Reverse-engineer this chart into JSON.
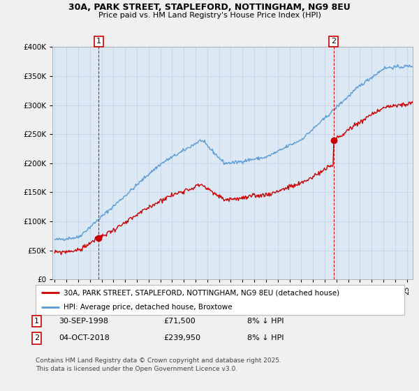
{
  "title1": "30A, PARK STREET, STAPLEFORD, NOTTINGHAM, NG9 8EU",
  "title2": "Price paid vs. HM Land Registry's House Price Index (HPI)",
  "legend_red": "30A, PARK STREET, STAPLEFORD, NOTTINGHAM, NG9 8EU (detached house)",
  "legend_blue": "HPI: Average price, detached house, Broxtowe",
  "transaction1_date": "30-SEP-1998",
  "transaction1_price": "£71,500",
  "transaction1_note": "8% ↓ HPI",
  "transaction2_date": "04-OCT-2018",
  "transaction2_price": "£239,950",
  "transaction2_note": "8% ↓ HPI",
  "footer": "Contains HM Land Registry data © Crown copyright and database right 2025.\nThis data is licensed under the Open Government Licence v3.0.",
  "vline1_x": 1998.75,
  "vline2_x": 2018.75,
  "point1_x": 1998.75,
  "point1_y": 71500,
  "point2_x": 2018.75,
  "point2_y": 239950,
  "ylim": [
    0,
    400000
  ],
  "xlim": [
    1994.8,
    2025.5
  ],
  "red_color": "#cc0000",
  "blue_color": "#5b9bd5",
  "vline_color": "#cc0000",
  "background_color": "#f0f0f0",
  "plot_bg": "#dce9f5"
}
